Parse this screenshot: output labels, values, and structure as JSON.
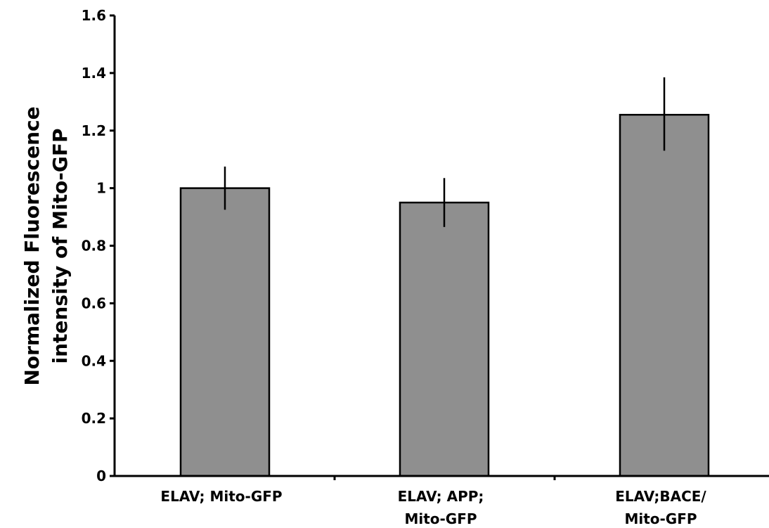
{
  "chart_data": {
    "type": "bar",
    "title": "",
    "xlabel": "",
    "ylabel": "Normalized Fluorescence intensity of Mito-GFP",
    "ylabel_lines": [
      "Normalized Fluorescence",
      "intensity of Mito-GFP"
    ],
    "ylim": [
      0,
      1.6
    ],
    "yticks": [
      "0",
      "0.2",
      "0.4",
      "0.6",
      "0.8",
      "1",
      "1.2",
      "1.4",
      "1.6"
    ],
    "categories": [
      "ELAV; Mito-GFP",
      "ELAV; APP; Mito-GFP",
      "ELAV;BACE/ Mito-GFP"
    ],
    "category_lines": [
      [
        "ELAV; Mito-GFP"
      ],
      [
        "ELAV; APP;",
        "Mito-GFP"
      ],
      [
        "ELAV;BACE/",
        "Mito-GFP"
      ]
    ],
    "values": [
      1.0,
      0.95,
      1.255
    ],
    "error_low": [
      0.925,
      0.865,
      1.13
    ],
    "error_high": [
      1.075,
      1.035,
      1.385
    ],
    "grid": false,
    "bar_color": "#8f8f8f",
    "bar_stroke": "#000000"
  }
}
